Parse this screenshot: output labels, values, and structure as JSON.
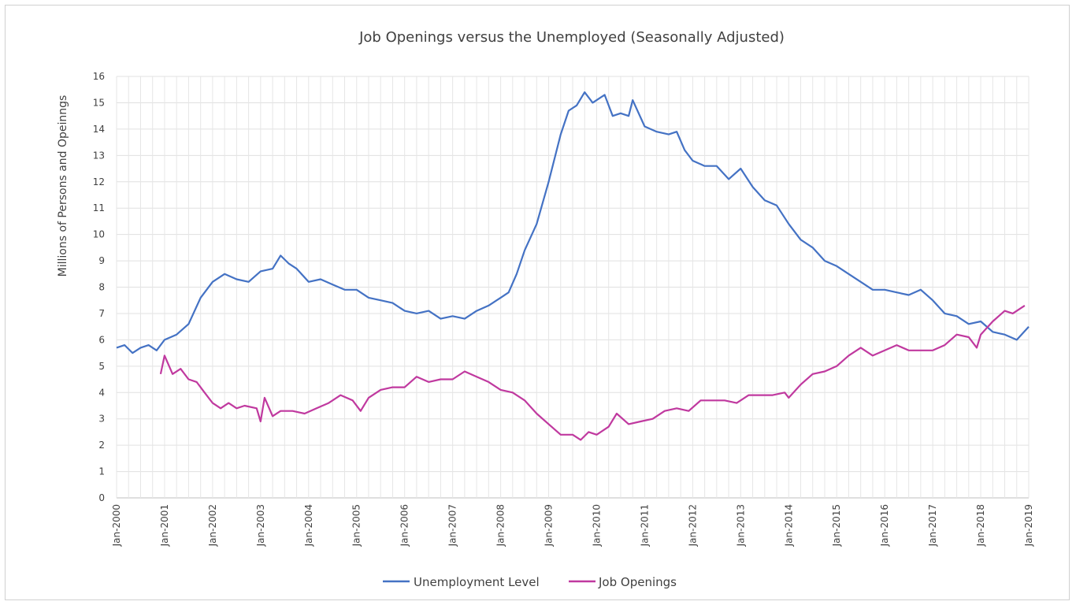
{
  "chart_data": {
    "type": "line",
    "title": "Job Openings versus the Unemployed (Seasonally Adjusted)",
    "ylabel": "Millions of Persons and Opeinngs",
    "xlabel": "",
    "ylim": [
      0,
      16
    ],
    "yticks": [
      "0",
      "1",
      "2",
      "3",
      "4",
      "5",
      "6",
      "7",
      "8",
      "9",
      "10",
      "11",
      "12",
      "13",
      "14",
      "15",
      "16"
    ],
    "xticks": [
      "Jan-2000",
      "Jan-2001",
      "Jan-2002",
      "Jan-2003",
      "Jan-2004",
      "Jan-2005",
      "Jan-2006",
      "Jan-2007",
      "Jan-2008",
      "Jan-2009",
      "Jan-2010",
      "Jan-2011",
      "Jan-2012",
      "Jan-2013",
      "Jan-2014",
      "Jan-2015",
      "Jan-2016",
      "Jan-2017",
      "Jan-2018",
      "Jan-2019"
    ],
    "xrange": [
      "2000-01",
      "2019-01"
    ],
    "grid": true,
    "legend_position": "bottom",
    "series": [
      {
        "name": "Unemployment Level",
        "color": "#4472C4",
        "points": [
          [
            "2000-01",
            5.7
          ],
          [
            "2000-03",
            5.8
          ],
          [
            "2000-05",
            5.5
          ],
          [
            "2000-07",
            5.7
          ],
          [
            "2000-09",
            5.8
          ],
          [
            "2000-11",
            5.6
          ],
          [
            "2001-01",
            6.0
          ],
          [
            "2001-04",
            6.2
          ],
          [
            "2001-07",
            6.6
          ],
          [
            "2001-10",
            7.6
          ],
          [
            "2002-01",
            8.2
          ],
          [
            "2002-04",
            8.5
          ],
          [
            "2002-07",
            8.3
          ],
          [
            "2002-10",
            8.2
          ],
          [
            "2003-01",
            8.6
          ],
          [
            "2003-04",
            8.7
          ],
          [
            "2003-06",
            9.2
          ],
          [
            "2003-08",
            8.9
          ],
          [
            "2003-10",
            8.7
          ],
          [
            "2004-01",
            8.2
          ],
          [
            "2004-04",
            8.3
          ],
          [
            "2004-07",
            8.1
          ],
          [
            "2004-10",
            7.9
          ],
          [
            "2005-01",
            7.9
          ],
          [
            "2005-04",
            7.6
          ],
          [
            "2005-07",
            7.5
          ],
          [
            "2005-10",
            7.4
          ],
          [
            "2006-01",
            7.1
          ],
          [
            "2006-04",
            7.0
          ],
          [
            "2006-07",
            7.1
          ],
          [
            "2006-10",
            6.8
          ],
          [
            "2007-01",
            6.9
          ],
          [
            "2007-04",
            6.8
          ],
          [
            "2007-07",
            7.1
          ],
          [
            "2007-10",
            7.3
          ],
          [
            "2008-01",
            7.6
          ],
          [
            "2008-03",
            7.8
          ],
          [
            "2008-05",
            8.5
          ],
          [
            "2008-07",
            9.4
          ],
          [
            "2008-10",
            10.4
          ],
          [
            "2009-01",
            12.0
          ],
          [
            "2009-04",
            13.8
          ],
          [
            "2009-06",
            14.7
          ],
          [
            "2009-08",
            14.9
          ],
          [
            "2009-10",
            15.4
          ],
          [
            "2009-12",
            15.0
          ],
          [
            "2010-03",
            15.3
          ],
          [
            "2010-05",
            14.5
          ],
          [
            "2010-07",
            14.6
          ],
          [
            "2010-09",
            14.5
          ],
          [
            "2010-10",
            15.1
          ],
          [
            "2011-01",
            14.1
          ],
          [
            "2011-04",
            13.9
          ],
          [
            "2011-07",
            13.8
          ],
          [
            "2011-09",
            13.9
          ],
          [
            "2011-11",
            13.2
          ],
          [
            "2012-01",
            12.8
          ],
          [
            "2012-04",
            12.6
          ],
          [
            "2012-07",
            12.6
          ],
          [
            "2012-10",
            12.1
          ],
          [
            "2013-01",
            12.5
          ],
          [
            "2013-04",
            11.8
          ],
          [
            "2013-07",
            11.3
          ],
          [
            "2013-10",
            11.1
          ],
          [
            "2014-01",
            10.4
          ],
          [
            "2014-04",
            9.8
          ],
          [
            "2014-07",
            9.5
          ],
          [
            "2014-10",
            9.0
          ],
          [
            "2015-01",
            8.8
          ],
          [
            "2015-04",
            8.5
          ],
          [
            "2015-07",
            8.2
          ],
          [
            "2015-10",
            7.9
          ],
          [
            "2016-01",
            7.9
          ],
          [
            "2016-04",
            7.8
          ],
          [
            "2016-07",
            7.7
          ],
          [
            "2016-10",
            7.9
          ],
          [
            "2017-01",
            7.5
          ],
          [
            "2017-04",
            7.0
          ],
          [
            "2017-07",
            6.9
          ],
          [
            "2017-10",
            6.6
          ],
          [
            "2018-01",
            6.7
          ],
          [
            "2018-04",
            6.3
          ],
          [
            "2018-07",
            6.2
          ],
          [
            "2018-10",
            6.0
          ],
          [
            "2019-01",
            6.5
          ]
        ]
      },
      {
        "name": "Job Openings",
        "color": "#C0399F",
        "points": [
          [
            "2000-12",
            4.7
          ],
          [
            "2001-01",
            5.4
          ],
          [
            "2001-03",
            4.7
          ],
          [
            "2001-05",
            4.9
          ],
          [
            "2001-07",
            4.5
          ],
          [
            "2001-09",
            4.4
          ],
          [
            "2001-11",
            4.0
          ],
          [
            "2002-01",
            3.6
          ],
          [
            "2002-03",
            3.4
          ],
          [
            "2002-05",
            3.6
          ],
          [
            "2002-07",
            3.4
          ],
          [
            "2002-09",
            3.5
          ],
          [
            "2002-12",
            3.4
          ],
          [
            "2003-01",
            2.9
          ],
          [
            "2003-02",
            3.8
          ],
          [
            "2003-04",
            3.1
          ],
          [
            "2003-06",
            3.3
          ],
          [
            "2003-09",
            3.3
          ],
          [
            "2003-12",
            3.2
          ],
          [
            "2004-03",
            3.4
          ],
          [
            "2004-06",
            3.6
          ],
          [
            "2004-09",
            3.9
          ],
          [
            "2004-12",
            3.7
          ],
          [
            "2005-02",
            3.3
          ],
          [
            "2005-04",
            3.8
          ],
          [
            "2005-07",
            4.1
          ],
          [
            "2005-10",
            4.2
          ],
          [
            "2006-01",
            4.2
          ],
          [
            "2006-04",
            4.6
          ],
          [
            "2006-07",
            4.4
          ],
          [
            "2006-10",
            4.5
          ],
          [
            "2007-01",
            4.5
          ],
          [
            "2007-04",
            4.8
          ],
          [
            "2007-07",
            4.6
          ],
          [
            "2007-10",
            4.4
          ],
          [
            "2008-01",
            4.1
          ],
          [
            "2008-04",
            4.0
          ],
          [
            "2008-07",
            3.7
          ],
          [
            "2008-10",
            3.2
          ],
          [
            "2009-01",
            2.8
          ],
          [
            "2009-04",
            2.4
          ],
          [
            "2009-07",
            2.4
          ],
          [
            "2009-09",
            2.2
          ],
          [
            "2009-11",
            2.5
          ],
          [
            "2010-01",
            2.4
          ],
          [
            "2010-04",
            2.7
          ],
          [
            "2010-06",
            3.2
          ],
          [
            "2010-09",
            2.8
          ],
          [
            "2010-12",
            2.9
          ],
          [
            "2011-03",
            3.0
          ],
          [
            "2011-06",
            3.3
          ],
          [
            "2011-09",
            3.4
          ],
          [
            "2011-12",
            3.3
          ],
          [
            "2012-03",
            3.7
          ],
          [
            "2012-06",
            3.7
          ],
          [
            "2012-09",
            3.7
          ],
          [
            "2012-12",
            3.6
          ],
          [
            "2013-03",
            3.9
          ],
          [
            "2013-06",
            3.9
          ],
          [
            "2013-09",
            3.9
          ],
          [
            "2013-12",
            4.0
          ],
          [
            "2014-01",
            3.8
          ],
          [
            "2014-04",
            4.3
          ],
          [
            "2014-07",
            4.7
          ],
          [
            "2014-10",
            4.8
          ],
          [
            "2015-01",
            5.0
          ],
          [
            "2015-04",
            5.4
          ],
          [
            "2015-07",
            5.7
          ],
          [
            "2015-10",
            5.4
          ],
          [
            "2016-01",
            5.6
          ],
          [
            "2016-04",
            5.8
          ],
          [
            "2016-07",
            5.6
          ],
          [
            "2016-10",
            5.6
          ],
          [
            "2017-01",
            5.6
          ],
          [
            "2017-04",
            5.8
          ],
          [
            "2017-07",
            6.2
          ],
          [
            "2017-10",
            6.1
          ],
          [
            "2017-12",
            5.7
          ],
          [
            "2018-01",
            6.2
          ],
          [
            "2018-04",
            6.7
          ],
          [
            "2018-07",
            7.1
          ],
          [
            "2018-09",
            7.0
          ],
          [
            "2018-12",
            7.3
          ]
        ]
      }
    ]
  }
}
